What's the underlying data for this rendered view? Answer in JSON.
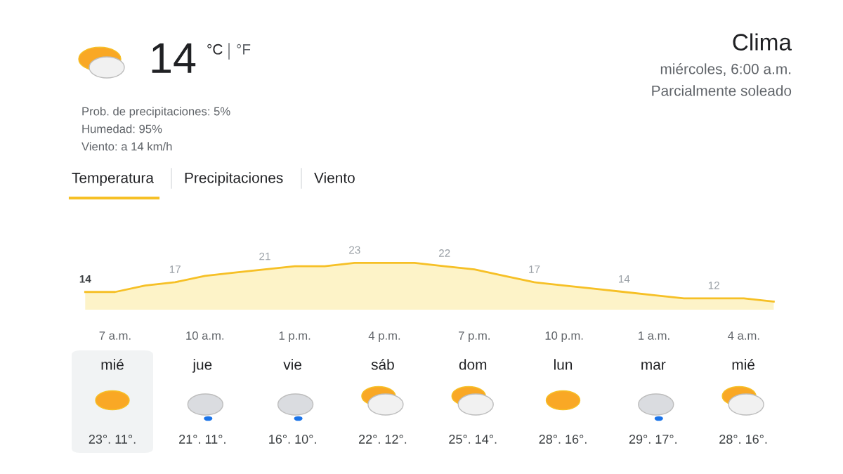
{
  "chart_data": {
    "type": "area",
    "title": "Clima",
    "categories": [
      null,
      "7 a.m.",
      null,
      null,
      "10 a.m.",
      null,
      null,
      "1 p.m.",
      null,
      null,
      "4 p.m.",
      null,
      null,
      "7 p.m.",
      null,
      null,
      "10 p.m.",
      null,
      null,
      "1 a.m.",
      null,
      null,
      "4 a.m.",
      null
    ],
    "series": [
      {
        "color": "#f6c026",
        "values": [
          14,
          14,
          16,
          17,
          19,
          20,
          21,
          22,
          22,
          23,
          23,
          23,
          22,
          21,
          19,
          17,
          16,
          15,
          14,
          13,
          12,
          12,
          12,
          11
        ],
        "value_labels": [
          "14",
          null,
          null,
          "17",
          null,
          null,
          "21",
          null,
          null,
          "23",
          null,
          null,
          "22",
          null,
          null,
          "17",
          null,
          null,
          "14",
          null,
          null,
          "12",
          null,
          null
        ]
      }
    ],
    "tick_labels": "x",
    "grid": false,
    "legend": false,
    "annotations": [
      "14",
      "°C",
      "°F",
      "Prob. de precipitaciones: 5%",
      "Humedad: 95%",
      "Viento: a 14 km/h",
      "Temperatura",
      "Precipitaciones",
      "Viento",
      "miércoles, 6:00 a.m.",
      "Parcialmente soleado",
      "mié",
      "23°. 11°.",
      "jue",
      "21°. 11°.",
      "vie",
      "16°. 10°.",
      "sáb",
      "22°. 12°.",
      "dom",
      "25°. 14°.",
      "lun",
      "28°. 16°.",
      "mar",
      "29°. 17°.",
      "mié",
      "28°. 16°."
    ]
  }
}
